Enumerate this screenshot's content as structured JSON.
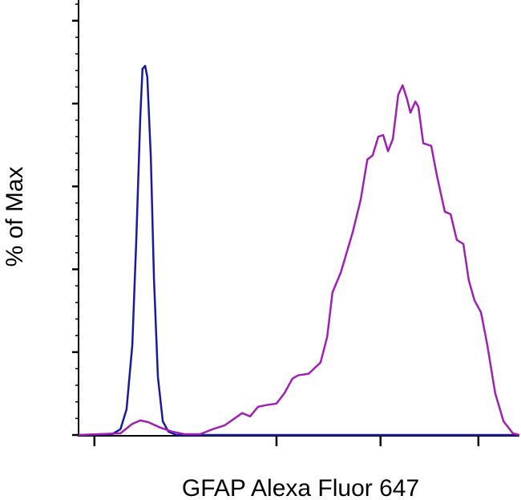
{
  "chart_data": {
    "type": "line",
    "y_label": "% of Max",
    "x_label": "GFAP Alexa Fluor 647",
    "xlim": [
      0,
      100
    ],
    "ylim": [
      0,
      105
    ],
    "yticks": [
      0,
      20,
      40,
      60,
      80,
      100
    ],
    "yminorticks": [
      4,
      8,
      12,
      16,
      24,
      28,
      32,
      36,
      44,
      48,
      52,
      56,
      64,
      68,
      72,
      76,
      84,
      88,
      92,
      96,
      104
    ],
    "xticks": [
      3.6,
      44.9,
      68.5,
      90.7
    ],
    "series": [
      {
        "color": "#1a1a9c",
        "x": [
          0,
          7.6,
          9.5,
          10.9,
          12.2,
          13.1,
          14.0,
          14.5,
          15.1,
          15.6,
          16.4,
          17.1,
          18.0,
          19.1,
          20.4,
          22.2,
          100
        ],
        "values": [
          0,
          0.2,
          1.4,
          6.2,
          21.8,
          47.5,
          76.7,
          88.4,
          89.1,
          86.4,
          66.9,
          37.7,
          14.0,
          3.3,
          0.8,
          0,
          0
        ]
      },
      {
        "color": "#a020b4",
        "x": [
          0,
          9.5,
          12.2,
          14.0,
          15.8,
          18.5,
          21.3,
          24.0,
          27.6,
          30.4,
          33.1,
          35.8,
          37.1,
          38.9,
          40.7,
          42.5,
          44.9,
          46.7,
          48.5,
          49.8,
          52.2,
          54.9,
          56.4,
          57.6,
          59.5,
          62.2,
          64.0,
          65.5,
          66.7,
          68.0,
          69.1,
          70.2,
          71.3,
          72.5,
          73.5,
          74.5,
          75.3,
          76.4,
          77.1,
          78.2,
          80.0,
          81.3,
          83.1,
          84.4,
          85.8,
          87.3,
          88.5,
          89.8,
          91.3,
          92.7,
          94.5,
          96.4,
          98.5,
          100
        ],
        "values": [
          0,
          0.4,
          2.7,
          3.5,
          3.1,
          1.8,
          0.8,
          0.2,
          0.2,
          1.4,
          2.3,
          4.3,
          5.3,
          4.5,
          6.8,
          7.2,
          7.6,
          10.1,
          13.6,
          14.4,
          14.8,
          17.5,
          23.7,
          34.4,
          39.3,
          49.0,
          56.8,
          66.5,
          67.5,
          72.0,
          72.4,
          68.5,
          71.4,
          82.1,
          84.4,
          81.1,
          77.8,
          80.5,
          79.2,
          70.4,
          69.8,
          62.6,
          53.9,
          53.3,
          47.1,
          46.1,
          37.4,
          32.5,
          29.6,
          21.8,
          10.1,
          3.3,
          0.4,
          0
        ]
      }
    ]
  }
}
